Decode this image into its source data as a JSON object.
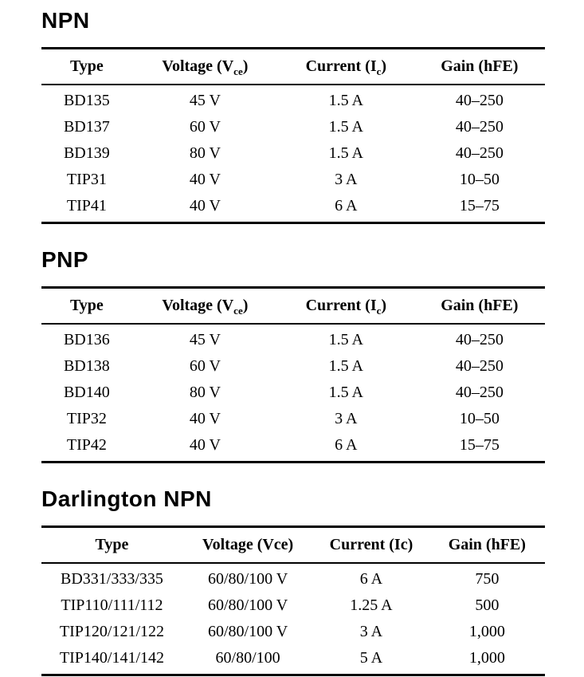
{
  "page": {
    "background": "#ffffff",
    "text_color": "#000000",
    "rule_color": "#000000"
  },
  "sections": [
    {
      "id": "npn",
      "heading": "NPN",
      "table": {
        "columns": [
          {
            "pre": "Type",
            "sub": "",
            "post": ""
          },
          {
            "pre": "Voltage (V",
            "sub": "ce",
            "post": ")"
          },
          {
            "pre": "Current (I",
            "sub": "c",
            "post": ")"
          },
          {
            "pre": "Gain (hFE)",
            "sub": "",
            "post": ""
          }
        ],
        "rows": [
          [
            "BD135",
            "45 V",
            "1.5 A",
            "40–250"
          ],
          [
            "BD137",
            "60 V",
            "1.5 A",
            "40–250"
          ],
          [
            "BD139",
            "80 V",
            "1.5 A",
            "40–250"
          ],
          [
            "TIP31",
            "40 V",
            "3 A",
            "10–50"
          ],
          [
            "TIP41",
            "40 V",
            "6 A",
            "15–75"
          ]
        ]
      }
    },
    {
      "id": "pnp",
      "heading": "PNP",
      "table": {
        "columns": [
          {
            "pre": "Type",
            "sub": "",
            "post": ""
          },
          {
            "pre": "Voltage (V",
            "sub": "ce",
            "post": ")"
          },
          {
            "pre": "Current (I",
            "sub": "c",
            "post": ")"
          },
          {
            "pre": "Gain (hFE)",
            "sub": "",
            "post": ""
          }
        ],
        "rows": [
          [
            "BD136",
            "45 V",
            "1.5 A",
            "40–250"
          ],
          [
            "BD138",
            "60 V",
            "1.5 A",
            "40–250"
          ],
          [
            "BD140",
            "80 V",
            "1.5 A",
            "40–250"
          ],
          [
            "TIP32",
            "40 V",
            "3 A",
            "10–50"
          ],
          [
            "TIP42",
            "40 V",
            "6 A",
            "15–75"
          ]
        ]
      }
    },
    {
      "id": "darlington-npn",
      "heading": "Darlington NPN",
      "table": {
        "columns": [
          {
            "pre": "Type",
            "sub": "",
            "post": ""
          },
          {
            "pre": "Voltage (Vce)",
            "sub": "",
            "post": ""
          },
          {
            "pre": "Current (Ic)",
            "sub": "",
            "post": ""
          },
          {
            "pre": "Gain (hFE)",
            "sub": "",
            "post": ""
          }
        ],
        "rows": [
          [
            "BD331/333/335",
            "60/80/100 V",
            "6 A",
            "750"
          ],
          [
            "TIP110/111/112",
            "60/80/100 V",
            "1.25 A",
            "500"
          ],
          [
            "TIP120/121/122",
            "60/80/100 V",
            "3 A",
            "1,000"
          ],
          [
            "TIP140/141/142",
            "60/80/100",
            "5 A",
            "1,000"
          ]
        ]
      }
    }
  ]
}
